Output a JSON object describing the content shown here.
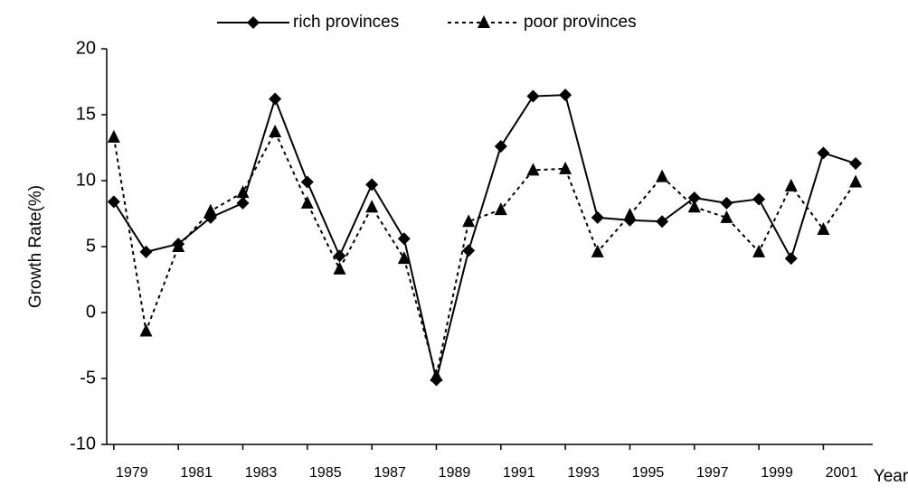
{
  "chart_data": {
    "type": "line",
    "y_label": "Growth Rate(%)",
    "x_label": "Year",
    "x": [
      1979,
      1980,
      1981,
      1982,
      1983,
      1984,
      1985,
      1986,
      1987,
      1988,
      1989,
      1990,
      1991,
      1992,
      1993,
      1994,
      1995,
      1996,
      1997,
      1998,
      1999,
      2000,
      2001,
      2002
    ],
    "series": [
      {
        "name": "rich provinces",
        "color": "#000000",
        "marker": "diamond",
        "dash": false,
        "values": [
          8.4,
          4.6,
          5.2,
          7.2,
          8.3,
          16.2,
          9.9,
          4.3,
          9.7,
          5.6,
          -5.1,
          4.7,
          12.6,
          16.4,
          16.5,
          7.2,
          7.0,
          6.9,
          8.7,
          8.3,
          8.6,
          4.1,
          12.1,
          11.3
        ]
      },
      {
        "name": "poor provinces",
        "color": "#000000",
        "marker": "triangle",
        "dash": true,
        "values": [
          13.3,
          -1.4,
          5.0,
          7.7,
          9.1,
          13.7,
          8.3,
          3.3,
          8.0,
          4.1,
          -4.8,
          6.9,
          7.8,
          10.8,
          10.9,
          4.6,
          7.4,
          10.3,
          8.0,
          7.2,
          4.6,
          9.6,
          6.3,
          9.9
        ]
      }
    ],
    "xlim": [
      1978.78,
      2002.53
    ],
    "xticks": [
      1979,
      1981,
      1983,
      1985,
      1987,
      1989,
      1991,
      1993,
      1995,
      1997,
      1999,
      2001
    ],
    "ylim": [
      -10,
      20
    ],
    "yticks": [
      -10,
      -5,
      0,
      5,
      10,
      15,
      20
    ],
    "grid": false,
    "legend": "top"
  }
}
